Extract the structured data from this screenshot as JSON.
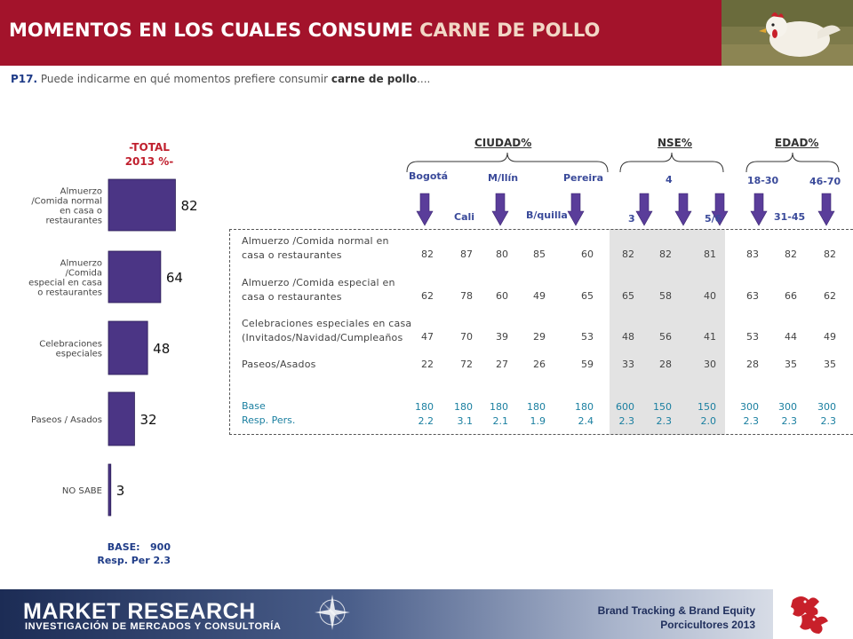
{
  "header": {
    "title_main": "MOMENTOS EN LOS CUALES CONSUME ",
    "title_accent": "CARNE DE POLLO"
  },
  "question": {
    "label": "P17.",
    "text": "Puede indicarme en qué momentos prefiere consumir",
    "bold": "carne de pollo",
    "suffix": "...."
  },
  "total": {
    "title_line1": "-TOTAL",
    "title_line2": "2013 %-",
    "base_label": "BASE:",
    "base_value": "900",
    "resp": "Resp. Per 2.3"
  },
  "chart_data": {
    "type": "bar",
    "orientation": "horizontal",
    "title": "-TOTAL 2013 %-",
    "categories": [
      [
        "Almuerzo",
        "/Comida normal",
        "en casa o",
        "restaurantes"
      ],
      [
        "Almuerzo",
        "/Comida",
        "especial en casa",
        "o restaurantes"
      ],
      [
        "Celebraciones",
        "especiales"
      ],
      [
        "Paseos / Asados"
      ],
      [
        "NO SABE"
      ]
    ],
    "values": [
      82,
      64,
      48,
      32,
      3
    ],
    "value_labels": [
      "82",
      "64",
      "48",
      "32",
      "3"
    ],
    "xlim": [
      0,
      100
    ],
    "bar_color": "#4b3585",
    "grid": false
  },
  "groups": [
    {
      "label": "CIUDAD%"
    },
    {
      "label": "NSE%"
    },
    {
      "label": "EDAD%"
    }
  ],
  "sub_labels": [
    "Bogotá",
    "Cali",
    "M/llín",
    "B/quilla",
    "Pereira",
    "3",
    "4",
    "5/6",
    "18-30",
    "31-45",
    "46-70"
  ],
  "table": {
    "rows": [
      {
        "label_line1": "Almuerzo /Comida normal en",
        "label_line2": "casa o restaurantes",
        "values": [
          "82",
          "87",
          "80",
          "85",
          "60",
          "82",
          "82",
          "81",
          "83",
          "82",
          "82"
        ]
      },
      {
        "label_line1": "Almuerzo /Comida especial en",
        "label_line2": "casa o restaurantes",
        "values": [
          "62",
          "78",
          "60",
          "49",
          "65",
          "65",
          "58",
          "40",
          "63",
          "66",
          "62"
        ]
      },
      {
        "label_line1": "Celebraciones especiales en casa",
        "label_line2": "(Invitados/Navidad/Cumpleaños",
        "values": [
          "47",
          "70",
          "39",
          "29",
          "53",
          "48",
          "56",
          "41",
          "53",
          "44",
          "49"
        ]
      },
      {
        "label_line1": "Paseos/Asados",
        "label_line2": "",
        "values": [
          "22",
          "72",
          "27",
          "26",
          "59",
          "33",
          "28",
          "30",
          "28",
          "35",
          "35"
        ]
      }
    ],
    "base_label": "Base",
    "resp_label": "Resp. Pers.",
    "base_values": [
      "180",
      "180",
      "180",
      "180",
      "180",
      "600",
      "150",
      "150",
      "300",
      "300",
      "300"
    ],
    "resp_values": [
      "2.2",
      "3.1",
      "2.1",
      "1.9",
      "2.4",
      "2.3",
      "2.3",
      "2.0",
      "2.3",
      "2.3",
      "2.3"
    ]
  },
  "footer": {
    "brand": "MARKET RESEARCH",
    "brand_sub": "INVESTIGACIÓN DE MERCADOS Y CONSULTORÍA",
    "right_line1": "Brand Tracking & Brand Equity",
    "right_line2": "Porcicultores 2013"
  },
  "colors": {
    "header": "#a3132b",
    "bar": "#4b3585",
    "arrow": "#5a3d9a",
    "total_title": "#c0202e",
    "base_values": "#1a7fa0"
  }
}
